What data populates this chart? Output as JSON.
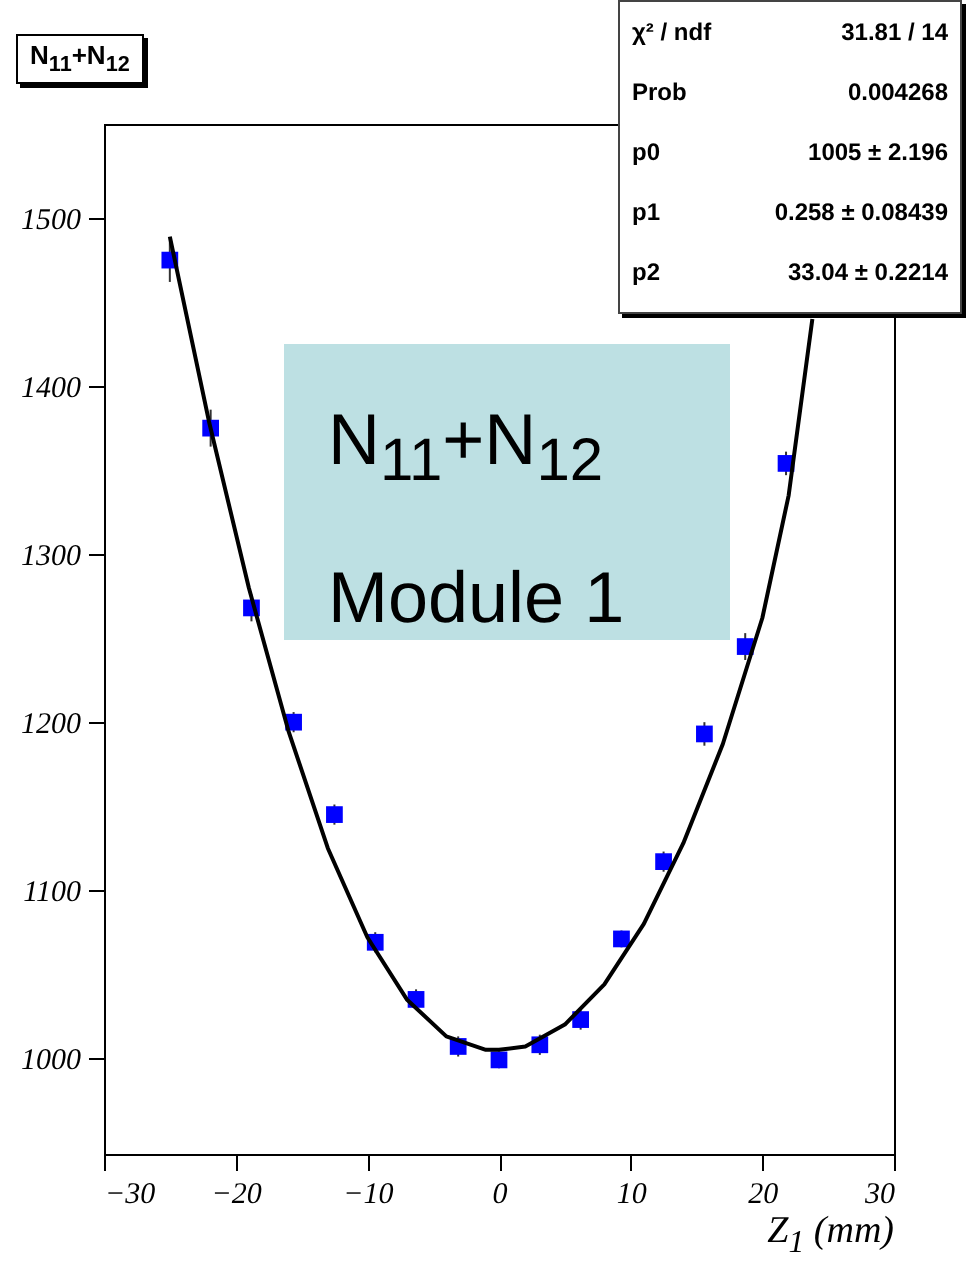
{
  "chart_data": {
    "type": "scatter",
    "title": "N$_{11}$+N$_{12}$",
    "xlabel": "Z$_{1}$ (mm)",
    "xlim": [
      -30,
      30
    ],
    "xticks": [
      -30,
      -20,
      -10,
      0,
      10,
      20,
      30
    ],
    "ylim": [
      943,
      1556
    ],
    "yticks": [
      1000,
      1100,
      1200,
      1300,
      1400,
      1500
    ],
    "annotations": [
      "N$_{11}$+N$_{12}$",
      "Module 1",
      "χ² / ndf",
      "31.81 / 14",
      "Prob",
      "0.004268",
      "p0",
      "1005 ± 2.196",
      "p1",
      "0.258 ± 0.08439",
      "p2",
      "33.04 ± 0.2214"
    ],
    "series": [
      {
        "color": "#0000ff",
        "marker": "square",
        "x": [
          -25,
          -21.9,
          -18.8,
          -15.6,
          -12.5,
          -9.4,
          -6.3,
          -3.1,
          0,
          3.1,
          6.2,
          9.3,
          12.5,
          15.6,
          18.7,
          21.8
        ],
        "values": [
          1475,
          1375,
          1268,
          1200,
          1145,
          1069,
          1035,
          1007,
          999,
          1008,
          1023,
          1071,
          1117,
          1193,
          1245,
          1354
        ],
        "errors": [
          13,
          11,
          8,
          6,
          6,
          6,
          6,
          6,
          5,
          6,
          6,
          5,
          6,
          7,
          8,
          7
        ]
      },
      {
        "type": "line",
        "color": "#000000",
        "x": [
          -25,
          -22,
          -19,
          -16,
          -13,
          -10,
          -7,
          -4,
          -1,
          0,
          2,
          5,
          8,
          11,
          14,
          17,
          20,
          22,
          23.8
        ],
        "values": [
          1489,
          1378,
          1280,
          1195,
          1125,
          1072,
          1035,
          1013,
          1005,
          1005,
          1007,
          1020,
          1044,
          1080,
          1128,
          1187,
          1262,
          1335,
          1440
        ]
      }
    ]
  }
}
